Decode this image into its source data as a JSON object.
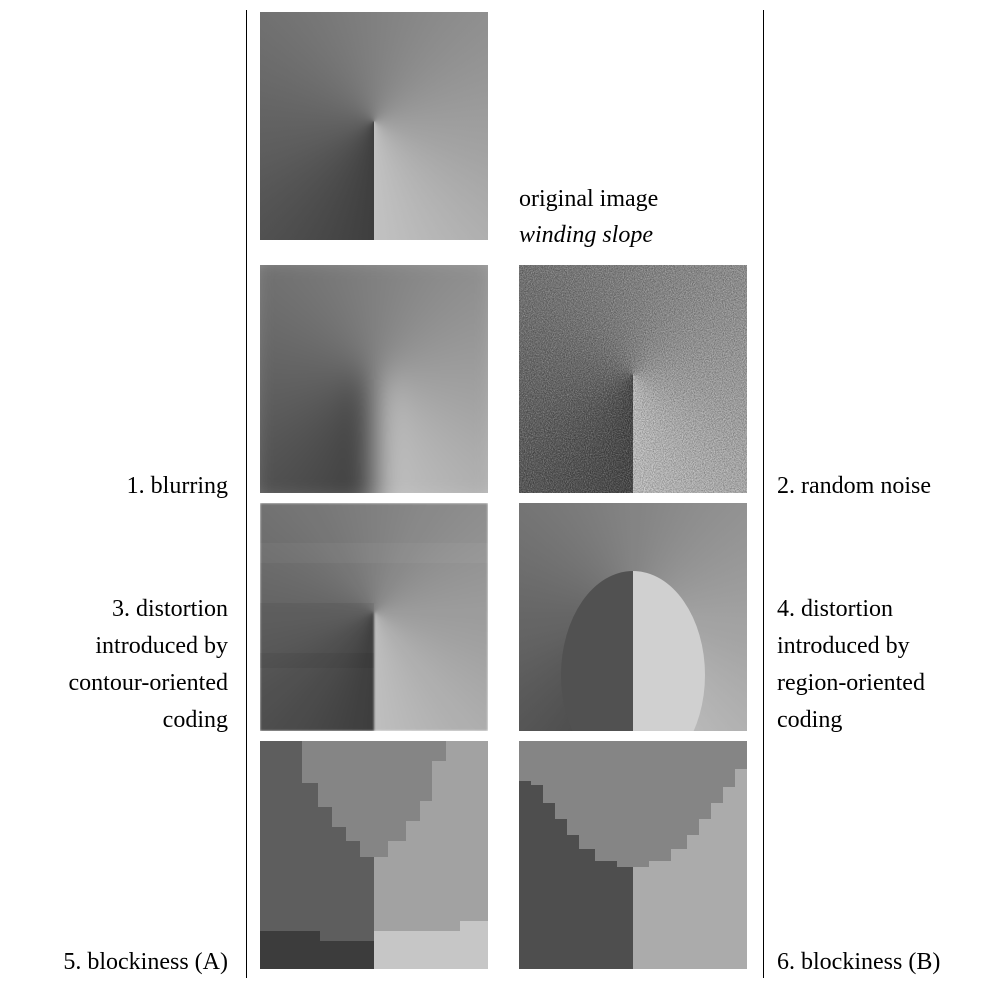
{
  "original": {
    "label": "original image",
    "name": "winding slope"
  },
  "labels": {
    "left": [
      {
        "lines": [
          "1. blurring"
        ]
      },
      {
        "lines": [
          "3. distortion",
          "introduced by",
          "contour-oriented",
          "coding"
        ]
      },
      {
        "lines": [
          "5. blockiness (A)"
        ]
      }
    ],
    "right": [
      {
        "lines": [
          "2. random noise"
        ]
      },
      {
        "lines": [
          "4. distortion",
          "introduced by",
          "region-oriented",
          "coding"
        ]
      },
      {
        "lines": [
          "6. blockiness (B)"
        ]
      }
    ]
  }
}
